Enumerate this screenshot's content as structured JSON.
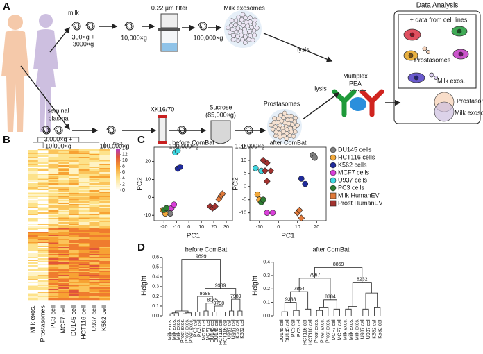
{
  "panel_labels": [
    "A",
    "B",
    "C",
    "D"
  ],
  "panel_a": {
    "milk": "milk",
    "milk_spin": "300×g +",
    "milk_spin2": "3000×g",
    "spin_10k": "10,000×g",
    "filter": "0.22 µm filter",
    "spin_100k_milk": "100,000×g",
    "milk_exosomes": "Milk exosomes",
    "lysis_1": "lysis",
    "pea": "Multiplex",
    "pea2": "PEA",
    "data_analysis": "Data Analysis",
    "cell_lines": "+ data from cell lines",
    "box_prostasomes": "Prostasomes",
    "box_milk": "Milk exos.",
    "venn_prostasomes": "Prostasomes",
    "venn_milk": "Milk exosomes",
    "seminal": "seminal",
    "plasma": "plasma",
    "sp_spin": "3,000×g +",
    "sp_spin2": "10,000×g",
    "sp_100k_1": "100,000×g",
    "column": "XK16/70",
    "sucrose": "Sucrose",
    "sucrose_g": "(85,000×g)",
    "sp_100k_2": "100,000×g",
    "sp_100k_3": "100,000×g",
    "prostasomes": "Prostasomes",
    "lysis_2": "lysis"
  },
  "heatmap": {
    "columns": [
      "Milk exos.",
      "Prostasomes",
      "PC3 cell",
      "MCF7 cell",
      "DU145 cell",
      "HCT116 cell",
      "U937 cell",
      "K562 cell"
    ],
    "legend_title": "NPX",
    "legend_ticks": [
      14,
      12,
      10,
      8,
      6,
      4,
      2,
      0
    ]
  },
  "chart_data": [
    {
      "type": "scatter",
      "title": "before ComBat",
      "xlabel": "PC1",
      "ylabel": "PC2",
      "xlim": [
        -28,
        35
      ],
      "ylim": [
        -13,
        28
      ],
      "xticks": [
        -20,
        -10,
        0,
        10,
        20,
        30
      ],
      "yticks": [
        -10,
        0,
        10,
        20
      ],
      "legend": "right",
      "series": [
        {
          "name": "DU145 cells",
          "color": "#808080",
          "marker": "circle",
          "x": [
            -17,
            -15
          ],
          "values": [
            -8,
            -9
          ]
        },
        {
          "name": "HCT116 cells",
          "color": "#f2a93b",
          "marker": "circle",
          "x": [
            -21,
            -19
          ],
          "values": [
            -7,
            -9
          ]
        },
        {
          "name": "K562 cells",
          "color": "#1f2a9c",
          "marker": "circle",
          "x": [
            -9,
            -7
          ],
          "values": [
            16,
            17
          ]
        },
        {
          "name": "MCF7 cells",
          "color": "#d93fd9",
          "marker": "circle",
          "x": [
            -14,
            -12
          ],
          "values": [
            -6,
            -4
          ]
        },
        {
          "name": "U937 cells",
          "color": "#3fd6e0",
          "marker": "circle",
          "x": [
            -11,
            -9
          ],
          "values": [
            25,
            26
          ]
        },
        {
          "name": "PC3 cells",
          "color": "#2e7d32",
          "marker": "circle",
          "x": [
            -20,
            -18
          ],
          "values": [
            -7,
            -6
          ]
        },
        {
          "name": "Milk HumanEV",
          "color": "#e0793a",
          "marker": "diamond",
          "x": [
            24,
            26,
            27
          ],
          "values": [
            -1,
            1,
            2
          ]
        },
        {
          "name": "Prost HumanEV",
          "color": "#a3322f",
          "marker": "diamond",
          "x": [
            17,
            19,
            21
          ],
          "values": [
            -5,
            -6,
            -5
          ]
        }
      ]
    },
    {
      "type": "scatter",
      "title": "after ComBat",
      "xlabel": "PC1",
      "ylabel": "PC2",
      "xlim": [
        -15,
        25
      ],
      "ylim": [
        -13,
        15
      ],
      "xticks": [
        -10,
        0,
        10,
        20
      ],
      "yticks": [
        -10,
        -5,
        0,
        5,
        10,
        15
      ],
      "series": [
        {
          "color": "#808080",
          "marker": "circle",
          "x": [
            18,
            19
          ],
          "values": [
            12,
            11
          ]
        },
        {
          "color": "#f2a93b",
          "marker": "circle",
          "x": [
            -11,
            -10
          ],
          "values": [
            -3,
            -5
          ]
        },
        {
          "color": "#1f2a9c",
          "marker": "circle",
          "x": [
            12,
            14
          ],
          "values": [
            3,
            1
          ]
        },
        {
          "color": "#d93fd9",
          "marker": "circle",
          "x": [
            -6,
            -3
          ],
          "values": [
            -10,
            -10
          ]
        },
        {
          "color": "#3fd6e0",
          "marker": "circle",
          "x": [
            -12,
            -9
          ],
          "values": [
            7,
            6
          ]
        },
        {
          "color": "#2e7d32",
          "marker": "circle",
          "x": [
            -9,
            -8
          ],
          "values": [
            -6,
            -5
          ]
        },
        {
          "color": "#e0793a",
          "marker": "diamond",
          "x": [
            10,
            12,
            11
          ],
          "values": [
            -10,
            -12,
            -9
          ]
        },
        {
          "color": "#a3322f",
          "marker": "diamond",
          "x": [
            -8,
            -6,
            -7,
            -4,
            -6
          ],
          "values": [
            10,
            9,
            6,
            6,
            2
          ]
        }
      ]
    },
    {
      "type": "dendrogram",
      "title": "before ComBat",
      "ylabel": "Height",
      "ylim": [
        0,
        0.62
      ],
      "yticks": [
        {
          "value": 0,
          "label": "0.0"
        },
        0.1,
        0.2,
        0.3,
        0.4,
        0.5,
        0.6
      ],
      "leaves": [
        {
          "label": "Milk exos.",
          "color": "#e0793a"
        },
        {
          "label": "Milk exos.",
          "color": "#e0793a"
        },
        {
          "label": "Milk exos.",
          "color": "#e0793a"
        },
        {
          "label": "Prost exos.",
          "color": "#a3322f"
        },
        {
          "label": "Prost exos.",
          "color": "#a3322f"
        },
        {
          "label": "Prost exos.",
          "color": "#a3322f"
        },
        {
          "label": "PC3 cell",
          "color": "#2e7d32"
        },
        {
          "label": "PC3 cell",
          "color": "#2e7d32"
        },
        {
          "label": "MCF7 cell",
          "color": "#d93fd9"
        },
        {
          "label": "MCF7 cell",
          "color": "#d93fd9"
        },
        {
          "label": "DU145 cell",
          "color": "#808080"
        },
        {
          "label": "DU145 cell",
          "color": "#808080"
        },
        {
          "label": "HCT116 cell",
          "color": "#e0b020"
        },
        {
          "label": "HCT116 cell",
          "color": "#e0b020"
        },
        {
          "label": "U937 cell",
          "color": "#2bb0c0"
        },
        {
          "label": "U937 cell",
          "color": "#2bb0c0"
        },
        {
          "label": "K562 cell",
          "color": "#1f2a9c"
        },
        {
          "label": "K562 cell",
          "color": "#1f2a9c"
        }
      ],
      "merges": [
        {
          "a": 0,
          "b": 1,
          "h": 0.02
        },
        {
          "a": 18,
          "b": 2,
          "h": 0.03
        },
        {
          "a": 3,
          "b": 4,
          "h": 0.02
        },
        {
          "a": 20,
          "b": 5,
          "h": 0.03
        },
        {
          "a": 19,
          "b": 21,
          "h": 0.05
        },
        {
          "a": 6,
          "b": 7,
          "h": 0.04
        },
        {
          "a": 8,
          "b": 9,
          "h": 0.05
        },
        {
          "a": 10,
          "b": 11,
          "h": 0.04
        },
        {
          "a": 12,
          "b": 13,
          "h": 0.04
        },
        {
          "a": 25,
          "b": 26,
          "h": 0.1,
          "label": "9798"
        },
        {
          "a": 24,
          "b": 27,
          "h": 0.13,
          "label": "8045"
        },
        {
          "a": 23,
          "b": 28,
          "h": 0.2,
          "label": "9688"
        },
        {
          "a": 14,
          "b": 15,
          "h": 0.05
        },
        {
          "a": 16,
          "b": 17,
          "h": 0.05
        },
        {
          "a": 30,
          "b": 31,
          "h": 0.17,
          "label": "7989"
        },
        {
          "a": 29,
          "b": 32,
          "h": 0.28,
          "label": "9989"
        },
        {
          "a": 22,
          "b": 33,
          "h": 0.58,
          "label": "9699"
        }
      ]
    },
    {
      "type": "dendrogram",
      "title": "after ComBat",
      "ylabel": "Height",
      "ylim": [
        0,
        0.45
      ],
      "yticks": [
        {
          "value": 0,
          "label": "0.0"
        },
        0.1,
        0.2,
        0.3,
        0.4
      ],
      "leaves": [
        {
          "label": "DU145 cell",
          "color": "#808080"
        },
        {
          "label": "DU145 cell",
          "color": "#808080"
        },
        {
          "label": "PC3 cell",
          "color": "#2e7d32"
        },
        {
          "label": "PC3 cell",
          "color": "#2e7d32"
        },
        {
          "label": "HCT116 cell",
          "color": "#e0b020"
        },
        {
          "label": "HCT116 cell",
          "color": "#e0b020"
        },
        {
          "label": "Prost exos.",
          "color": "#a3322f"
        },
        {
          "label": "Prost exos.",
          "color": "#a3322f"
        },
        {
          "label": "Prost exos.",
          "color": "#a3322f"
        },
        {
          "label": "MCF7 cell",
          "color": "#d93fd9"
        },
        {
          "label": "MCF7 cell",
          "color": "#d93fd9"
        },
        {
          "label": "Milk exos.",
          "color": "#e0793a"
        },
        {
          "label": "Milk exos.",
          "color": "#e0793a"
        },
        {
          "label": "Milk exos.",
          "color": "#e0793a"
        },
        {
          "label": "U937 cell",
          "color": "#2bb0c0"
        },
        {
          "label": "U937 cell",
          "color": "#2bb0c0"
        },
        {
          "label": "K562 cell",
          "color": "#1f2a9c"
        },
        {
          "label": "K562 cell",
          "color": "#1f2a9c"
        }
      ],
      "merges": [
        {
          "a": 0,
          "b": 1,
          "h": 0.03
        },
        {
          "a": 2,
          "b": 3,
          "h": 0.04
        },
        {
          "a": 18,
          "b": 19,
          "h": 0.1,
          "label": "9338"
        },
        {
          "a": 4,
          "b": 5,
          "h": 0.05
        },
        {
          "a": 20,
          "b": 21,
          "h": 0.18,
          "label": "7854"
        },
        {
          "a": 6,
          "b": 7,
          "h": 0.04
        },
        {
          "a": 23,
          "b": 8,
          "h": 0.06
        },
        {
          "a": 9,
          "b": 10,
          "h": 0.05
        },
        {
          "a": 24,
          "b": 25,
          "h": 0.12,
          "label": "8384"
        },
        {
          "a": 22,
          "b": 26,
          "h": 0.28,
          "label": "7967"
        },
        {
          "a": 11,
          "b": 12,
          "h": 0.05
        },
        {
          "a": 28,
          "b": 13,
          "h": 0.07
        },
        {
          "a": 14,
          "b": 15,
          "h": 0.05
        },
        {
          "a": 16,
          "b": 17,
          "h": 0.06
        },
        {
          "a": 30,
          "b": 31,
          "h": 0.17
        },
        {
          "a": 29,
          "b": 32,
          "h": 0.25,
          "label": "8232"
        },
        {
          "a": 27,
          "b": 33,
          "h": 0.36,
          "label": "8859"
        }
      ]
    }
  ]
}
